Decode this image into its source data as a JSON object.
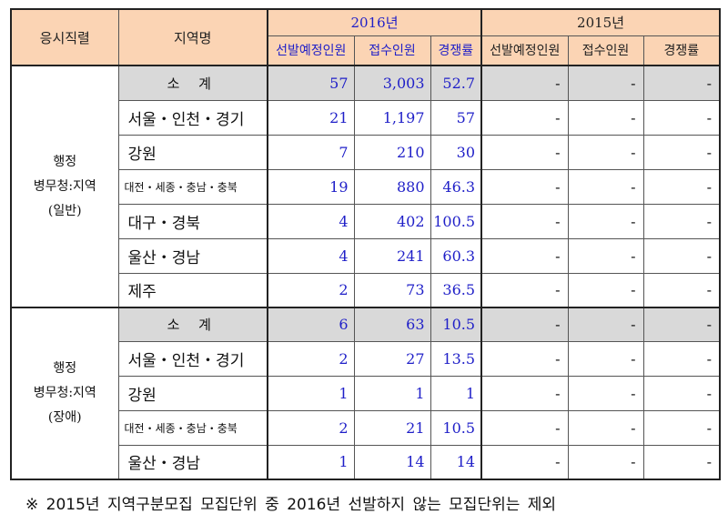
{
  "header": {
    "col_job": "응시직렬",
    "col_region": "지역명",
    "year_2016": "2016년",
    "year_2015": "2015년",
    "sub_planned": "선발예정인원",
    "sub_applied": "접수인원",
    "sub_ratio": "경쟁률"
  },
  "groups": [
    {
      "label_line1": "행정",
      "label_line2": "병무청:지역",
      "label_line3": "(일반)",
      "rows": [
        {
          "region": "소 계",
          "planned": "57",
          "applied": "3,003",
          "ratio": "52.7",
          "p15": "-",
          "a15": "-",
          "r15": "-"
        },
        {
          "region": "서울・인천・경기",
          "planned": "21",
          "applied": "1,197",
          "ratio": "57",
          "p15": "-",
          "a15": "-",
          "r15": "-"
        },
        {
          "region": "강원",
          "planned": "7",
          "applied": "210",
          "ratio": "30",
          "p15": "-",
          "a15": "-",
          "r15": "-"
        },
        {
          "region": "대전・세종・충남・충북",
          "planned": "19",
          "applied": "880",
          "ratio": "46.3",
          "p15": "-",
          "a15": "-",
          "r15": "-"
        },
        {
          "region": "대구・경북",
          "planned": "4",
          "applied": "402",
          "ratio": "100.5",
          "p15": "-",
          "a15": "-",
          "r15": "-"
        },
        {
          "region": "울산・경남",
          "planned": "4",
          "applied": "241",
          "ratio": "60.3",
          "p15": "-",
          "a15": "-",
          "r15": "-"
        },
        {
          "region": "제주",
          "planned": "2",
          "applied": "73",
          "ratio": "36.5",
          "p15": "-",
          "a15": "-",
          "r15": "-"
        }
      ]
    },
    {
      "label_line1": "행정",
      "label_line2": "병무청:지역",
      "label_line3": "(장애)",
      "rows": [
        {
          "region": "소 계",
          "planned": "6",
          "applied": "63",
          "ratio": "10.5",
          "p15": "-",
          "a15": "-",
          "r15": "-"
        },
        {
          "region": "서울・인천・경기",
          "planned": "2",
          "applied": "27",
          "ratio": "13.5",
          "p15": "-",
          "a15": "-",
          "r15": "-"
        },
        {
          "region": "강원",
          "planned": "1",
          "applied": "1",
          "ratio": "1",
          "p15": "-",
          "a15": "-",
          "r15": "-"
        },
        {
          "region": "대전・세종・충남・충북",
          "planned": "2",
          "applied": "21",
          "ratio": "10.5",
          "p15": "-",
          "a15": "-",
          "r15": "-"
        },
        {
          "region": "울산・경남",
          "planned": "1",
          "applied": "14",
          "ratio": "14",
          "p15": "-",
          "a15": "-",
          "r15": "-"
        }
      ]
    }
  ],
  "footnote": "※ 2015년 지역구분모집 모집단위 중 2016년 선발하지 않는 모집단위는 제외"
}
